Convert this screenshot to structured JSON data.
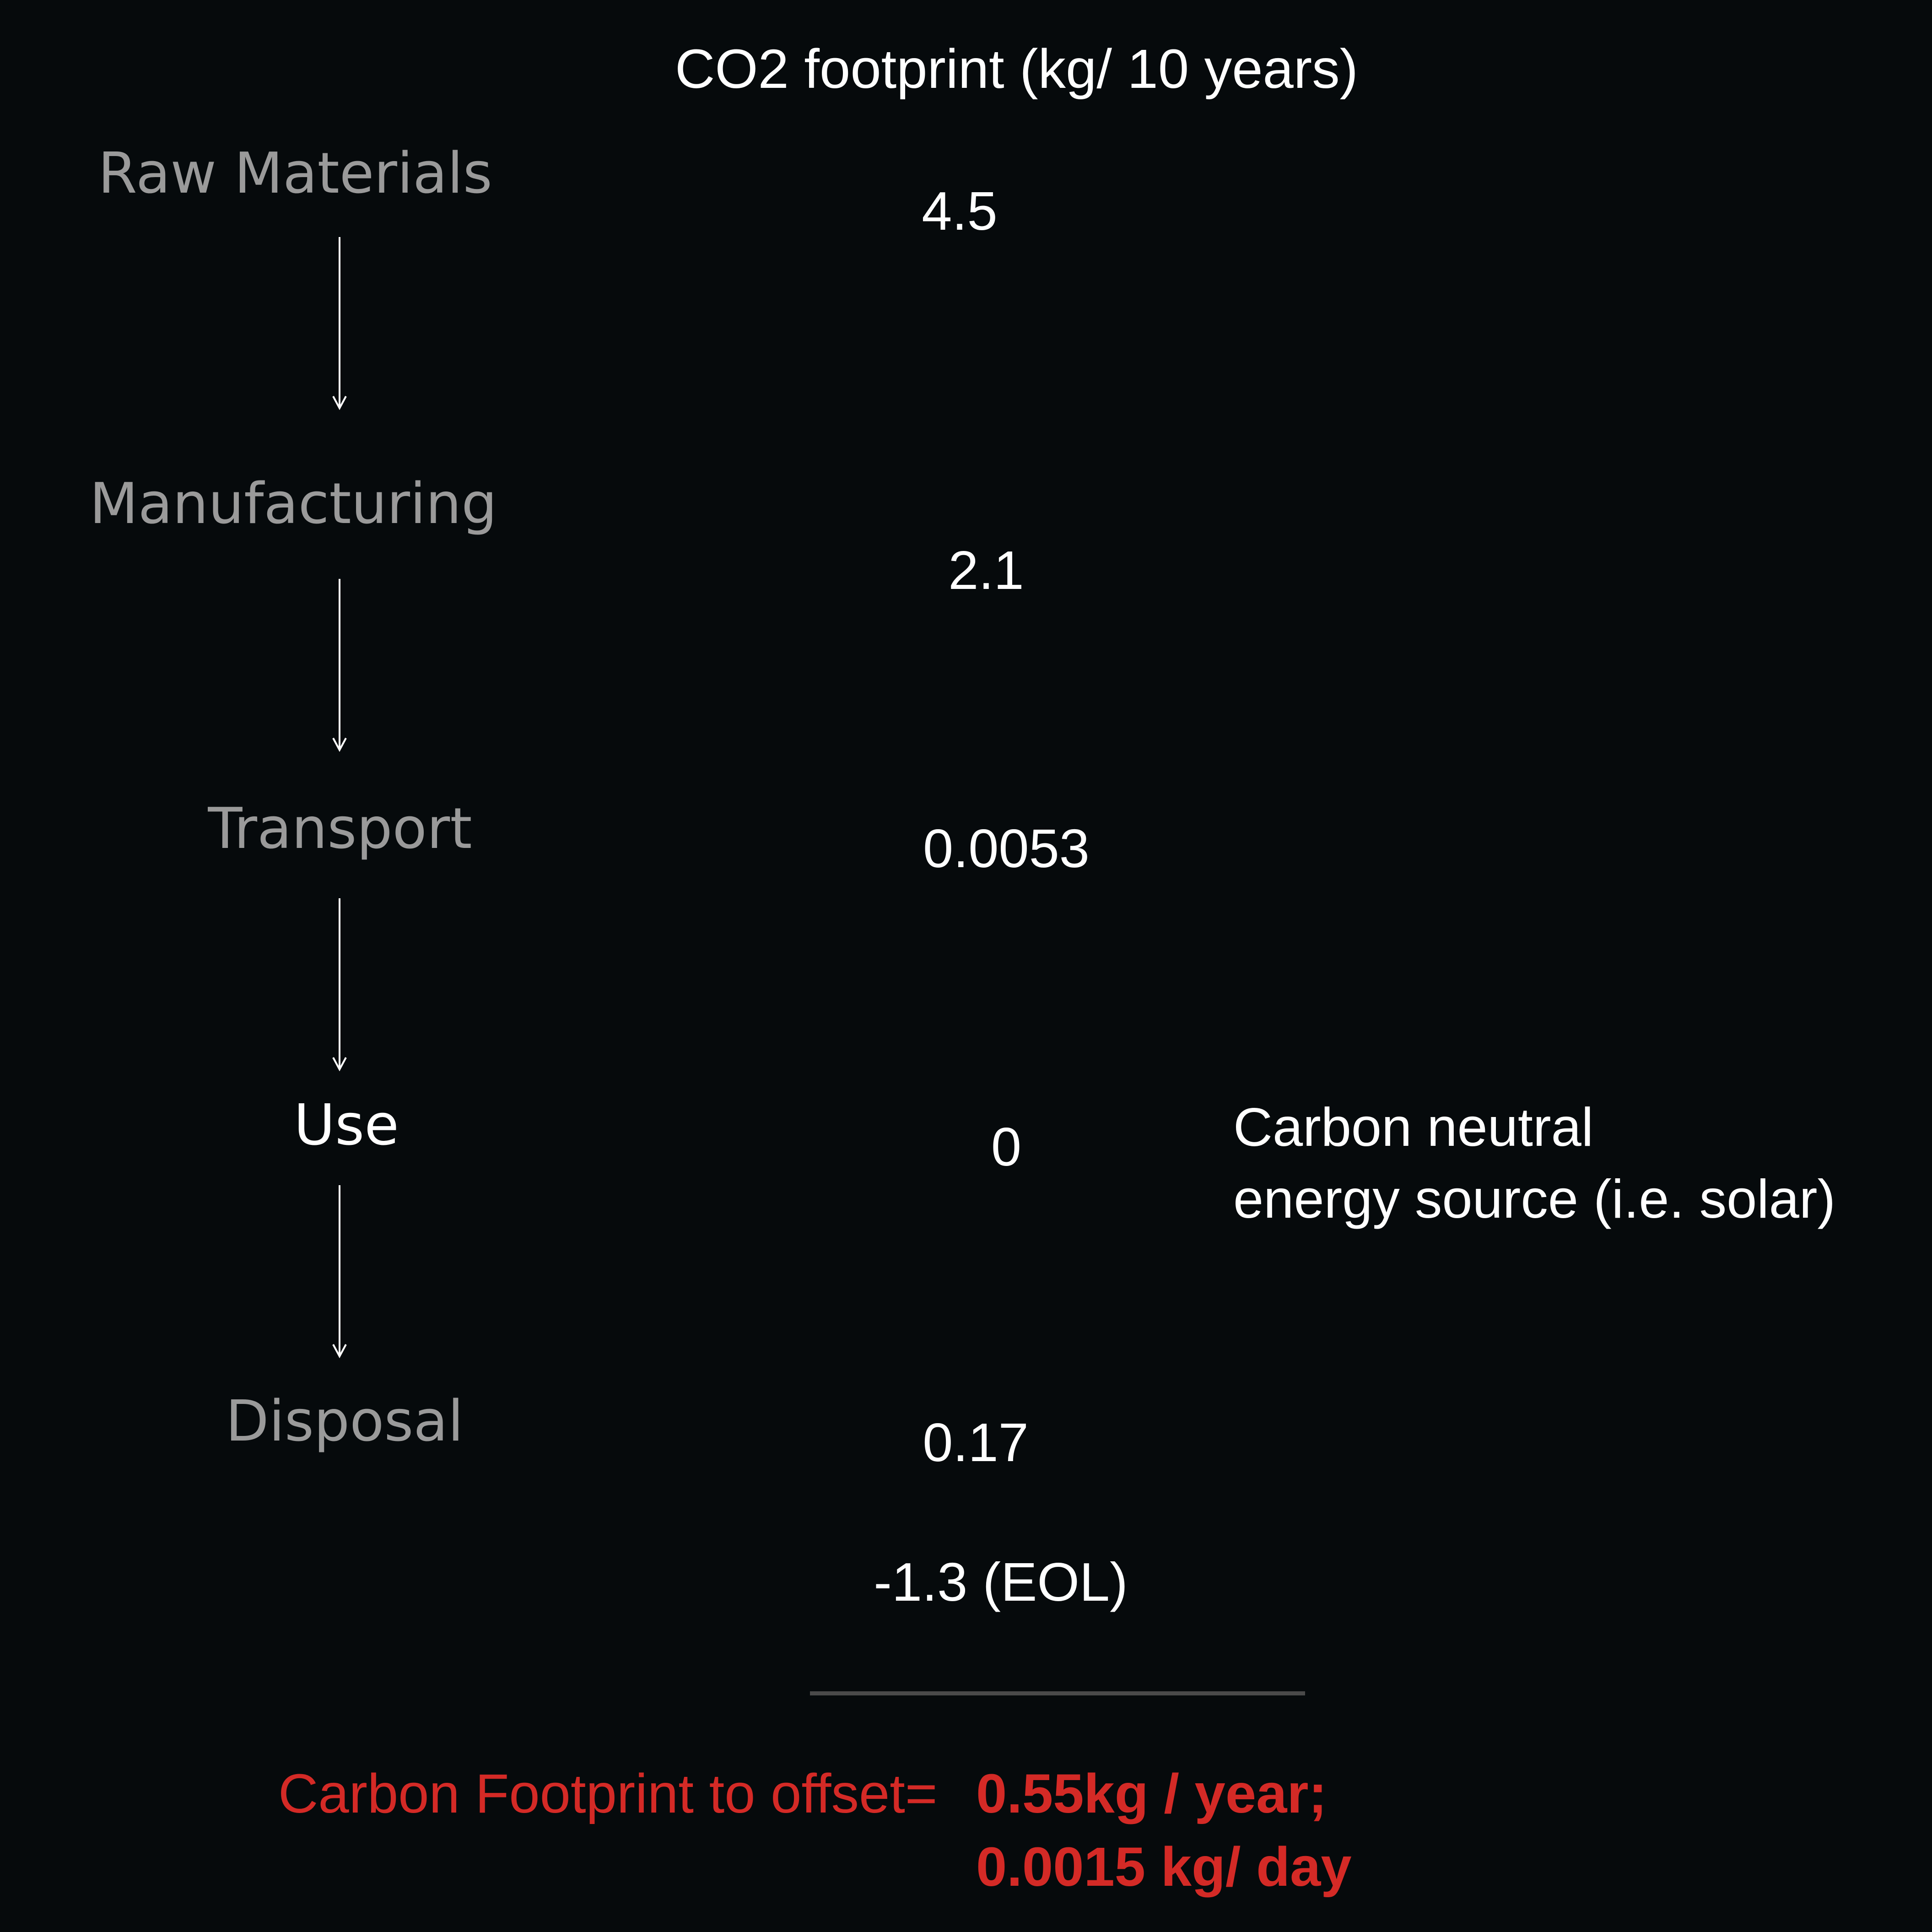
{
  "header": {
    "title": "CO2 footprint (kg/ 10 years)"
  },
  "stages": [
    {
      "label": "Raw Materials",
      "value": "4.5"
    },
    {
      "label": "Manufacturing",
      "value": "2.1"
    },
    {
      "label": "Transport",
      "value": "0.0053"
    },
    {
      "label": "Use",
      "value": "0"
    },
    {
      "label": "Disposal",
      "value": "0.17"
    }
  ],
  "eol_value": "-1.3 (EOL)",
  "use_note": {
    "line1": "Carbon neutral",
    "line2": "energy source (i.e. solar)"
  },
  "summary": {
    "label": "Carbon Footprint to offset=",
    "per_year": "0.55kg / year;",
    "per_day": "0.0015 kg/ day"
  },
  "colors": {
    "background": "#060a0c",
    "stage_text": "#9a9a9a",
    "highlight_text": "#ffffff",
    "accent_red": "#d42a26",
    "divider": "#4a4a4a"
  }
}
